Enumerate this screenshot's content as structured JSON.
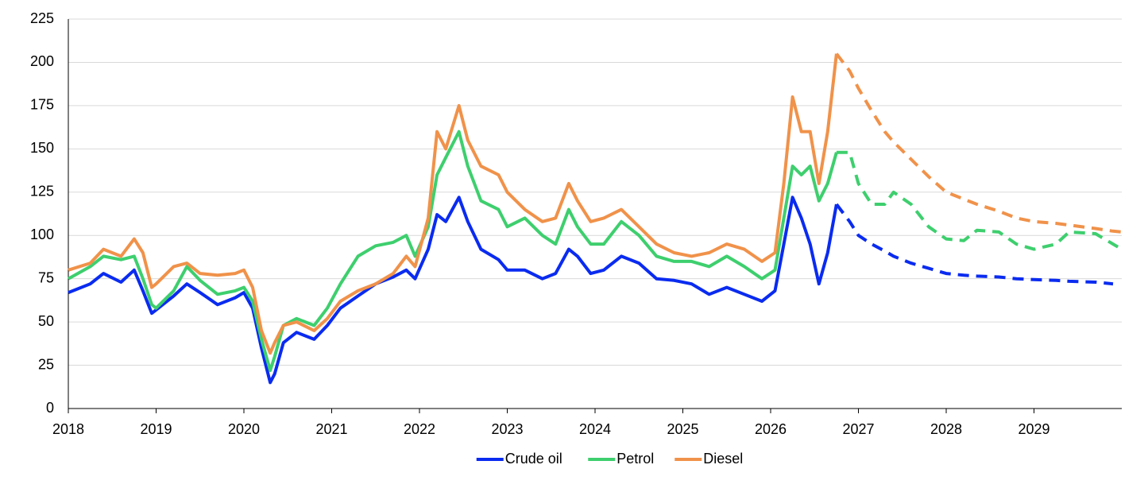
{
  "chart_data": {
    "type": "line",
    "x": [
      2018,
      2018.25,
      2018.4,
      2018.6,
      2018.75,
      2018.85,
      2018.95,
      2019,
      2019.2,
      2019.35,
      2019.5,
      2019.7,
      2019.9,
      2020,
      2020.1,
      2020.2,
      2020.3,
      2020.35,
      2020.45,
      2020.6,
      2020.8,
      2020.95,
      2021.1,
      2021.3,
      2021.5,
      2021.7,
      2021.85,
      2021.95,
      2022.1,
      2022.2,
      2022.3,
      2022.45,
      2022.55,
      2022.7,
      2022.9,
      2023,
      2023.2,
      2023.4,
      2023.55,
      2023.7,
      2023.8,
      2023.95,
      2024.1,
      2024.3,
      2024.5,
      2024.7,
      2024.9,
      2025.1,
      2025.3,
      2025.5,
      2025.7,
      2025.9,
      2026.05,
      2026.15,
      2026.25,
      2026.35,
      2026.45,
      2026.55,
      2026.65,
      2026.75
    ],
    "forecast_x": [
      2026.75,
      2026.9,
      2027,
      2027.15,
      2027.3,
      2027.4,
      2027.6,
      2027.8,
      2028,
      2028.2,
      2028.35,
      2028.6,
      2028.8,
      2029,
      2029.25,
      2029.4,
      2029.7,
      2029.9,
      2030
    ],
    "series": [
      {
        "name": "Crude oil",
        "color": "#0a2bf0",
        "values": [
          67,
          72,
          78,
          73,
          80,
          68,
          55,
          57,
          65,
          72,
          67,
          60,
          64,
          67,
          58,
          35,
          15,
          20,
          38,
          44,
          40,
          48,
          58,
          65,
          72,
          76,
          80,
          75,
          92,
          112,
          108,
          122,
          108,
          92,
          86,
          80,
          80,
          75,
          78,
          92,
          88,
          78,
          80,
          88,
          84,
          75,
          74,
          72,
          66,
          70,
          66,
          62,
          68,
          95,
          122,
          110,
          95,
          72,
          90,
          118
        ],
        "forecast_values": [
          118,
          108,
          100,
          95,
          91,
          88,
          84,
          81,
          78,
          77,
          76.5,
          76,
          75,
          74.5,
          74,
          73.5,
          73,
          72,
          null
        ]
      },
      {
        "name": "Petrol",
        "color": "#3ecf6e",
        "values": [
          75,
          82,
          88,
          86,
          88,
          75,
          60,
          58,
          68,
          82,
          74,
          66,
          68,
          70,
          62,
          40,
          22,
          30,
          48,
          52,
          48,
          58,
          72,
          88,
          94,
          96,
          100,
          88,
          105,
          135,
          145,
          160,
          140,
          120,
          115,
          105,
          110,
          100,
          95,
          115,
          105,
          95,
          95,
          108,
          100,
          88,
          85,
          85,
          82,
          88,
          82,
          75,
          80,
          110,
          140,
          135,
          140,
          120,
          130,
          148
        ],
        "forecast_values": [
          148,
          148,
          130,
          118,
          118,
          125,
          118,
          105,
          98,
          97,
          103,
          102,
          95,
          92,
          95,
          102,
          101,
          95,
          92
        ]
      },
      {
        "name": "Diesel",
        "color": "#f0924a",
        "values": [
          80,
          84,
          92,
          88,
          98,
          90,
          70,
          72,
          82,
          84,
          78,
          77,
          78,
          80,
          70,
          45,
          32,
          38,
          48,
          50,
          45,
          52,
          62,
          68,
          72,
          78,
          88,
          82,
          110,
          160,
          150,
          175,
          155,
          140,
          135,
          125,
          115,
          108,
          110,
          130,
          120,
          108,
          110,
          115,
          105,
          95,
          90,
          88,
          90,
          95,
          92,
          85,
          90,
          130,
          180,
          160,
          160,
          130,
          160,
          205
        ],
        "forecast_values": [
          205,
          195,
          185,
          172,
          160,
          154,
          144,
          134,
          125,
          121,
          118,
          114,
          110,
          108,
          107,
          106,
          104,
          102.5,
          102
        ]
      }
    ],
    "xlim": [
      2018,
      2030
    ],
    "xticks": [
      2018,
      2019,
      2020,
      2021,
      2022,
      2023,
      2024,
      2025,
      2026,
      2027,
      2028,
      2029
    ],
    "ylim": [
      0,
      225
    ],
    "yticks": [
      0,
      25,
      50,
      75,
      100,
      125,
      150,
      175,
      200,
      225
    ],
    "grid": true,
    "legend": "bottom"
  }
}
